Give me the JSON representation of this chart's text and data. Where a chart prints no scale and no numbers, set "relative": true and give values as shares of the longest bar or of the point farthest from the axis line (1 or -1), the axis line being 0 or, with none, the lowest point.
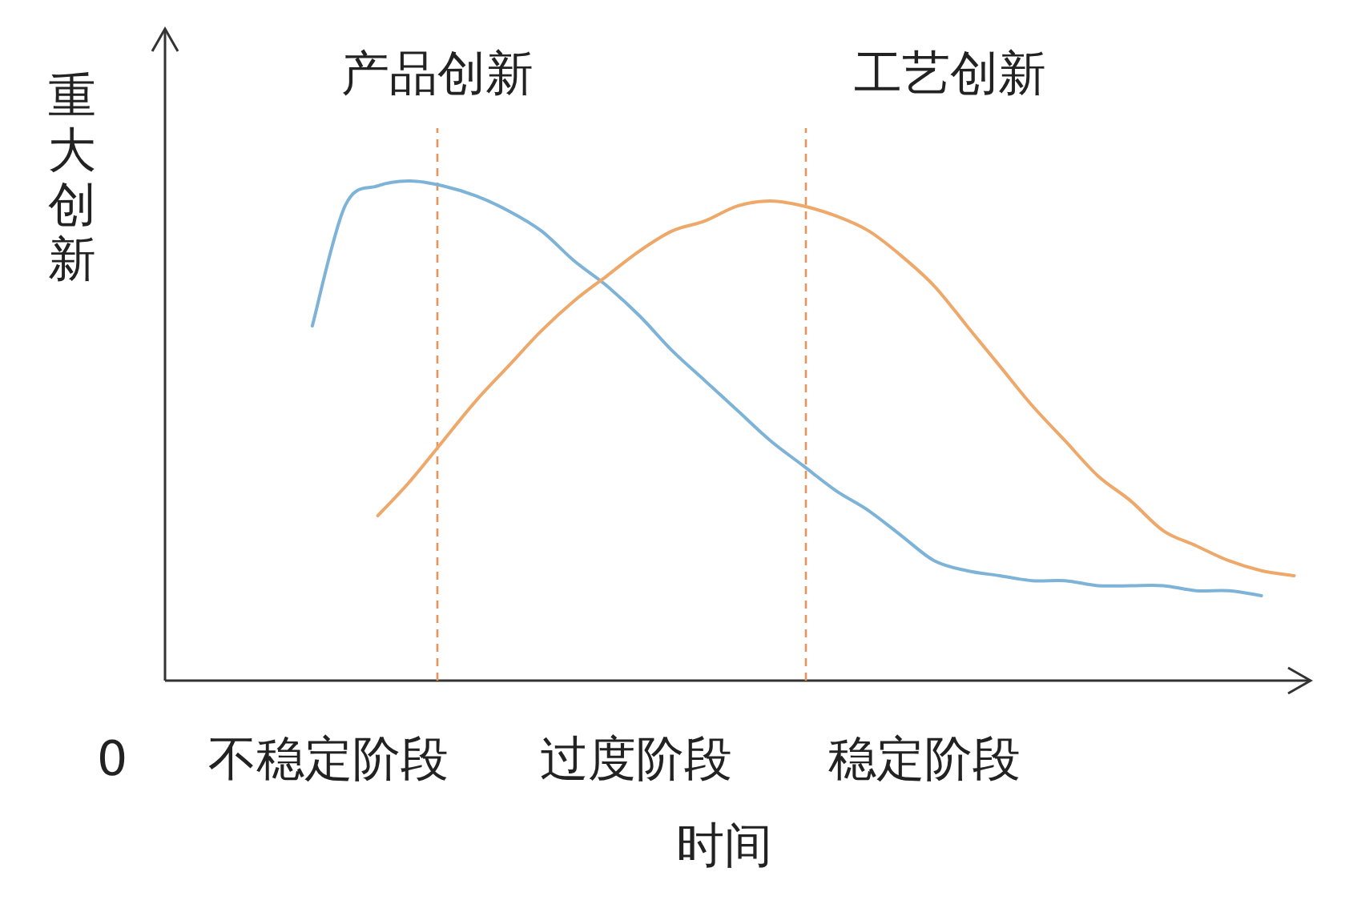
{
  "chart_data": {
    "type": "line",
    "relative": true,
    "xlabel": "时间",
    "ylabel": "重大创新",
    "categories": [
      null,
      null,
      null,
      null,
      null,
      null,
      null,
      null,
      null,
      null,
      null,
      null,
      null,
      null,
      null,
      null,
      null,
      null,
      null,
      null,
      null,
      null,
      null,
      null,
      null,
      null,
      null,
      null,
      null,
      null,
      null,
      null,
      null,
      null,
      null
    ],
    "annotations": [
      "0",
      "不稳定阶段",
      "过度阶段",
      "稳定阶段",
      "产品创新",
      "工艺创新"
    ],
    "series": [
      {
        "color": "#7eb3d8",
        "values": [
          null,
          null,
          null,
          null,
          0.71,
          0.95,
          0.99,
          1.0,
          0.99,
          0.97,
          0.94,
          0.9,
          0.84,
          0.79,
          0.73,
          0.66,
          0.6,
          0.54,
          0.48,
          0.43,
          0.38,
          0.34,
          0.29,
          0.24,
          0.22,
          0.21,
          0.2,
          0.2,
          0.19,
          0.19,
          0.19,
          0.18,
          0.18,
          0.17,
          null
        ]
      },
      {
        "color": "#eda86a",
        "values": [
          null,
          null,
          null,
          null,
          null,
          null,
          0.33,
          0.4,
          0.48,
          0.56,
          0.63,
          0.7,
          0.76,
          0.81,
          0.86,
          0.9,
          0.92,
          0.95,
          0.96,
          0.95,
          0.93,
          0.9,
          0.85,
          0.79,
          0.71,
          0.63,
          0.55,
          0.48,
          0.41,
          0.36,
          0.3,
          0.27,
          0.24,
          0.22,
          0.21
        ]
      }
    ]
  }
}
